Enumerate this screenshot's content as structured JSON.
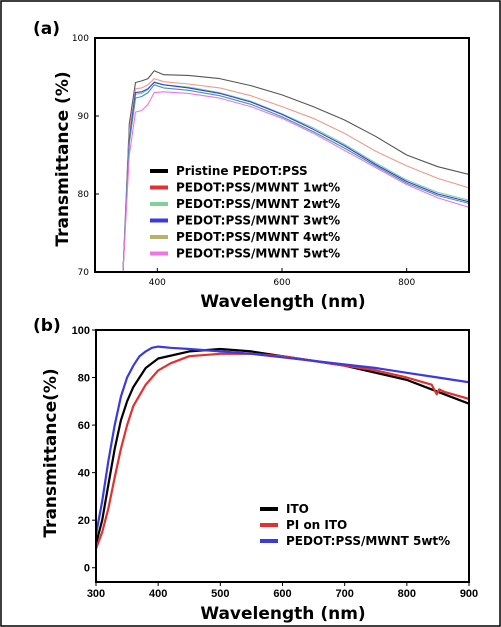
{
  "colors": {
    "black": "#000000",
    "red": "#e53030",
    "green": "#7fd19a",
    "blue": "#3a3ae0",
    "olive": "#b7b36a",
    "pink": "#f074e6",
    "gray": "#555555",
    "salmon": "#ef9a8a",
    "teal": "#3a9aa5"
  },
  "chart_data": [
    {
      "type": "line",
      "panel_label": "(a)",
      "xlabel": "Wavelength (nm)",
      "ylabel": "Transmittance (%)",
      "xlim": [
        300,
        900
      ],
      "ylim": [
        70,
        100
      ],
      "xticks": [
        400,
        600,
        800
      ],
      "xtick_labels": [
        "400",
        "600",
        "800"
      ],
      "yticks": [
        70,
        80,
        90,
        100
      ],
      "ytick_labels": [
        "70",
        "80",
        "90",
        "100"
      ],
      "legend_position": "lower-left",
      "series": [
        {
          "name": "Pristine PEDOT:PSS",
          "color_key": "gray",
          "x": [
            345,
            355,
            365,
            375,
            385,
            395,
            410,
            450,
            500,
            550,
            600,
            650,
            700,
            750,
            800,
            850,
            900
          ],
          "y": [
            70,
            89,
            94.3,
            94.5,
            94.8,
            95.8,
            95.3,
            95.2,
            94.8,
            93.9,
            92.7,
            91.2,
            89.5,
            87.4,
            85.0,
            83.5,
            82.5
          ]
        },
        {
          "name": "PEDOT:PSS/MWNT 1wt%",
          "color_key": "salmon",
          "x": [
            345,
            355,
            365,
            375,
            385,
            395,
            410,
            450,
            500,
            550,
            600,
            650,
            700,
            750,
            800,
            850,
            900
          ],
          "y": [
            70,
            88,
            93.5,
            93.6,
            94.0,
            94.8,
            94.4,
            94.1,
            93.6,
            92.6,
            91.2,
            89.7,
            87.8,
            85.5,
            83.6,
            82.0,
            80.8
          ]
        },
        {
          "name": "PEDOT:PSS/MWNT 2wt%",
          "color_key": "green",
          "x": [
            345,
            355,
            365,
            375,
            385,
            395,
            410,
            450,
            500,
            550,
            600,
            650,
            700,
            750,
            800,
            850,
            900
          ],
          "y": [
            70,
            87,
            92.8,
            92.9,
            93.4,
            94.4,
            94.0,
            93.7,
            93.0,
            91.9,
            90.3,
            88.5,
            86.4,
            84.0,
            81.8,
            80.2,
            79.2
          ]
        },
        {
          "name": "PEDOT:PSS/MWNT 3wt%",
          "color_key": "blue",
          "x": [
            345,
            355,
            365,
            375,
            385,
            395,
            410,
            450,
            500,
            550,
            600,
            650,
            700,
            750,
            800,
            850,
            900
          ],
          "y": [
            70,
            87,
            93.0,
            93.1,
            93.5,
            94.3,
            94.0,
            93.6,
            92.9,
            91.8,
            90.2,
            88.3,
            86.2,
            83.8,
            81.6,
            80.0,
            79.0
          ]
        },
        {
          "name": "PEDOT:PSS/MWNT 4wt%",
          "color_key": "teal",
          "x": [
            345,
            355,
            365,
            375,
            385,
            395,
            410,
            450,
            500,
            550,
            600,
            650,
            700,
            750,
            800,
            850,
            900
          ],
          "y": [
            70,
            86.5,
            92.3,
            92.5,
            93.0,
            94.0,
            93.6,
            93.3,
            92.6,
            91.5,
            89.9,
            88.0,
            85.9,
            83.6,
            81.4,
            79.8,
            78.8
          ]
        },
        {
          "name": "PEDOT:PSS/MWNT 5wt%",
          "color_key": "pink",
          "x": [
            345,
            355,
            365,
            375,
            385,
            395,
            410,
            450,
            500,
            550,
            600,
            650,
            700,
            750,
            800,
            850,
            900
          ],
          "y": [
            70,
            85,
            90.5,
            90.7,
            91.5,
            93.0,
            93.1,
            92.9,
            92.3,
            91.2,
            89.7,
            87.8,
            85.6,
            83.4,
            81.2,
            79.5,
            78.3
          ]
        }
      ],
      "legend_entries": [
        {
          "label": "Pristine PEDOT:PSS",
          "color_key": "black"
        },
        {
          "label": "PEDOT:PSS/MWNT 1wt%",
          "color_key": "red"
        },
        {
          "label": "PEDOT:PSS/MWNT 2wt%",
          "color_key": "green"
        },
        {
          "label": "PEDOT:PSS/MWNT 3wt%",
          "color_key": "blue"
        },
        {
          "label": "PEDOT:PSS/MWNT 4wt%",
          "color_key": "olive"
        },
        {
          "label": "PEDOT:PSS/MWNT 5wt%",
          "color_key": "pink"
        }
      ]
    },
    {
      "type": "line",
      "panel_label": "(b)",
      "xlabel": "Wavelength (nm)",
      "ylabel": "Transmittance(%)",
      "xlim": [
        300,
        900
      ],
      "ylim": [
        -6,
        100
      ],
      "xticks": [
        300,
        400,
        500,
        600,
        700,
        800,
        900
      ],
      "xtick_labels": [
        "300",
        "400",
        "500",
        "600",
        "700",
        "800",
        "900"
      ],
      "yticks": [
        0,
        20,
        40,
        60,
        80,
        100
      ],
      "ytick_labels": [
        "0",
        "20",
        "40",
        "60",
        "80",
        "100"
      ],
      "legend_position": "lower-right",
      "series": [
        {
          "name": "ITO",
          "color_key": "black",
          "x": [
            300,
            310,
            320,
            330,
            340,
            350,
            360,
            370,
            380,
            400,
            450,
            500,
            550,
            600,
            650,
            700,
            750,
            800,
            850,
            900
          ],
          "y": [
            10,
            20,
            35,
            50,
            62,
            70,
            76,
            80,
            84,
            88,
            91,
            92,
            91,
            89,
            87,
            85,
            82,
            79,
            74,
            69
          ]
        },
        {
          "name": "PI on ITO",
          "color_key": "red",
          "x": [
            300,
            310,
            320,
            330,
            340,
            350,
            360,
            380,
            400,
            420,
            450,
            500,
            550,
            600,
            650,
            700,
            750,
            800,
            840,
            848,
            852,
            860,
            900
          ],
          "y": [
            8,
            15,
            25,
            38,
            50,
            60,
            68,
            77,
            83,
            86,
            89,
            90,
            90,
            89,
            87,
            85,
            83,
            80,
            77,
            73,
            75,
            74,
            71
          ]
        },
        {
          "name": "PEDOT:PSS/MWNT 5wt%",
          "color_key": "blue",
          "x": [
            300,
            310,
            320,
            330,
            340,
            350,
            360,
            370,
            380,
            390,
            400,
            420,
            450,
            500,
            550,
            600,
            650,
            700,
            750,
            800,
            850,
            900
          ],
          "y": [
            14,
            28,
            45,
            60,
            72,
            80,
            85,
            89,
            91,
            92.5,
            93,
            92.5,
            92,
            91,
            90,
            88.5,
            87,
            85.5,
            84,
            82,
            80,
            78
          ]
        }
      ],
      "legend_entries": [
        {
          "label": "ITO",
          "color_key": "black"
        },
        {
          "label": "PI on ITO",
          "color_key": "red"
        },
        {
          "label": "PEDOT:PSS/MWNT 5wt%",
          "color_key": "blue"
        }
      ]
    }
  ]
}
